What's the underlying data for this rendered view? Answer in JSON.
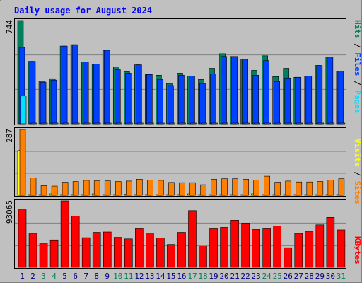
{
  "title": "Daily usage for August 2024",
  "colors": {
    "background": "#c0c0c0",
    "title": "#0000ff",
    "hits": "#00805c",
    "files": "#0040ff",
    "pages": "#00e0ff",
    "visits": "#ffff00",
    "sites": "#ff8000",
    "kbytes": "#ff0000",
    "weekend_label": "#00805c",
    "day_label": "#000080"
  },
  "chart_data": [
    {
      "type": "bar",
      "title": "Daily usage for August 2024",
      "panel": "top",
      "max_label": "744",
      "ylim": [
        0,
        744
      ],
      "legend": [
        "Pages",
        "Files",
        "Hits"
      ],
      "legend_placement": "right",
      "categories": [
        "1",
        "2",
        "3",
        "4",
        "5",
        "6",
        "7",
        "8",
        "9",
        "10",
        "11",
        "12",
        "13",
        "14",
        "15",
        "16",
        "17",
        "18",
        "19",
        "20",
        "21",
        "22",
        "23",
        "24",
        "25",
        "26",
        "27",
        "28",
        "29",
        "30",
        "31"
      ],
      "series": [
        {
          "name": "Hits",
          "values": [
            744,
            450,
            308,
            325,
            560,
            570,
            445,
            430,
            530,
            410,
            375,
            425,
            360,
            350,
            290,
            365,
            345,
            320,
            400,
            505,
            485,
            465,
            385,
            490,
            340,
            400,
            335,
            345,
            420,
            480,
            380
          ]
        },
        {
          "name": "Files",
          "values": [
            550,
            450,
            300,
            315,
            560,
            570,
            445,
            430,
            530,
            390,
            365,
            425,
            355,
            320,
            275,
            350,
            345,
            290,
            360,
            485,
            485,
            465,
            350,
            455,
            305,
            330,
            335,
            345,
            420,
            480,
            380
          ]
        },
        {
          "name": "Pages",
          "values": [
            200,
            5,
            4,
            3,
            4,
            4,
            4,
            3,
            4,
            3,
            3,
            4,
            3,
            3,
            3,
            3,
            3,
            3,
            3,
            4,
            4,
            4,
            3,
            4,
            3,
            3,
            3,
            3,
            3,
            4,
            3
          ]
        }
      ]
    },
    {
      "type": "bar",
      "panel": "middle",
      "max_label": "287",
      "ylim": [
        0,
        287
      ],
      "legend": [
        "Sites",
        "Visits"
      ],
      "legend_placement": "right",
      "categories": [
        "1",
        "2",
        "3",
        "4",
        "5",
        "6",
        "7",
        "8",
        "9",
        "10",
        "11",
        "12",
        "13",
        "14",
        "15",
        "16",
        "17",
        "18",
        "19",
        "20",
        "21",
        "22",
        "23",
        "24",
        "25",
        "26",
        "27",
        "28",
        "29",
        "30",
        "31"
      ],
      "series": [
        {
          "name": "Visits",
          "values": [
            195,
            3,
            2,
            6,
            3,
            3,
            3,
            6,
            3,
            3,
            4,
            3,
            3,
            3,
            3,
            3,
            6,
            3,
            3,
            3,
            3,
            3,
            6,
            3,
            3,
            3,
            3,
            3,
            3,
            3,
            3
          ]
        },
        {
          "name": "Sites",
          "values": [
            287,
            75,
            42,
            40,
            57,
            60,
            65,
            63,
            63,
            60,
            62,
            70,
            66,
            65,
            56,
            55,
            55,
            46,
            70,
            72,
            72,
            70,
            66,
            83,
            57,
            62,
            58,
            58,
            60,
            66,
            72
          ]
        }
      ]
    },
    {
      "type": "bar",
      "panel": "bottom",
      "max_label": "93065",
      "ylim": [
        0,
        93065
      ],
      "legend": [
        "KBytes"
      ],
      "legend_placement": "right",
      "categories": [
        "1",
        "2",
        "3",
        "4",
        "5",
        "6",
        "7",
        "8",
        "9",
        "10",
        "11",
        "12",
        "13",
        "14",
        "15",
        "16",
        "17",
        "18",
        "19",
        "20",
        "21",
        "22",
        "23",
        "24",
        "25",
        "26",
        "27",
        "28",
        "29",
        "30",
        "31"
      ],
      "series": [
        {
          "name": "KBytes",
          "values": [
            80600,
            47000,
            33800,
            38400,
            93065,
            72000,
            41500,
            49000,
            49500,
            42000,
            39800,
            55000,
            48000,
            41000,
            32000,
            49000,
            79400,
            30000,
            55000,
            56000,
            66000,
            62000,
            53000,
            55000,
            58000,
            27500,
            47500,
            50000,
            59600,
            70000,
            52500
          ]
        }
      ]
    }
  ],
  "days": [
    {
      "label": "1",
      "weekend": false
    },
    {
      "label": "2",
      "weekend": false
    },
    {
      "label": "3",
      "weekend": true
    },
    {
      "label": "4",
      "weekend": true
    },
    {
      "label": "5",
      "weekend": false
    },
    {
      "label": "6",
      "weekend": false
    },
    {
      "label": "7",
      "weekend": false
    },
    {
      "label": "8",
      "weekend": false
    },
    {
      "label": "9",
      "weekend": false
    },
    {
      "label": "10",
      "weekend": true
    },
    {
      "label": "11",
      "weekend": true
    },
    {
      "label": "12",
      "weekend": false
    },
    {
      "label": "13",
      "weekend": false
    },
    {
      "label": "14",
      "weekend": false
    },
    {
      "label": "15",
      "weekend": false
    },
    {
      "label": "16",
      "weekend": false
    },
    {
      "label": "17",
      "weekend": true
    },
    {
      "label": "18",
      "weekend": true
    },
    {
      "label": "19",
      "weekend": false
    },
    {
      "label": "20",
      "weekend": false
    },
    {
      "label": "21",
      "weekend": false
    },
    {
      "label": "22",
      "weekend": false
    },
    {
      "label": "23",
      "weekend": false
    },
    {
      "label": "24",
      "weekend": true
    },
    {
      "label": "25",
      "weekend": true
    },
    {
      "label": "26",
      "weekend": false
    },
    {
      "label": "27",
      "weekend": false
    },
    {
      "label": "28",
      "weekend": false
    },
    {
      "label": "29",
      "weekend": false
    },
    {
      "label": "30",
      "weekend": false
    },
    {
      "label": "31",
      "weekend": true
    }
  ]
}
